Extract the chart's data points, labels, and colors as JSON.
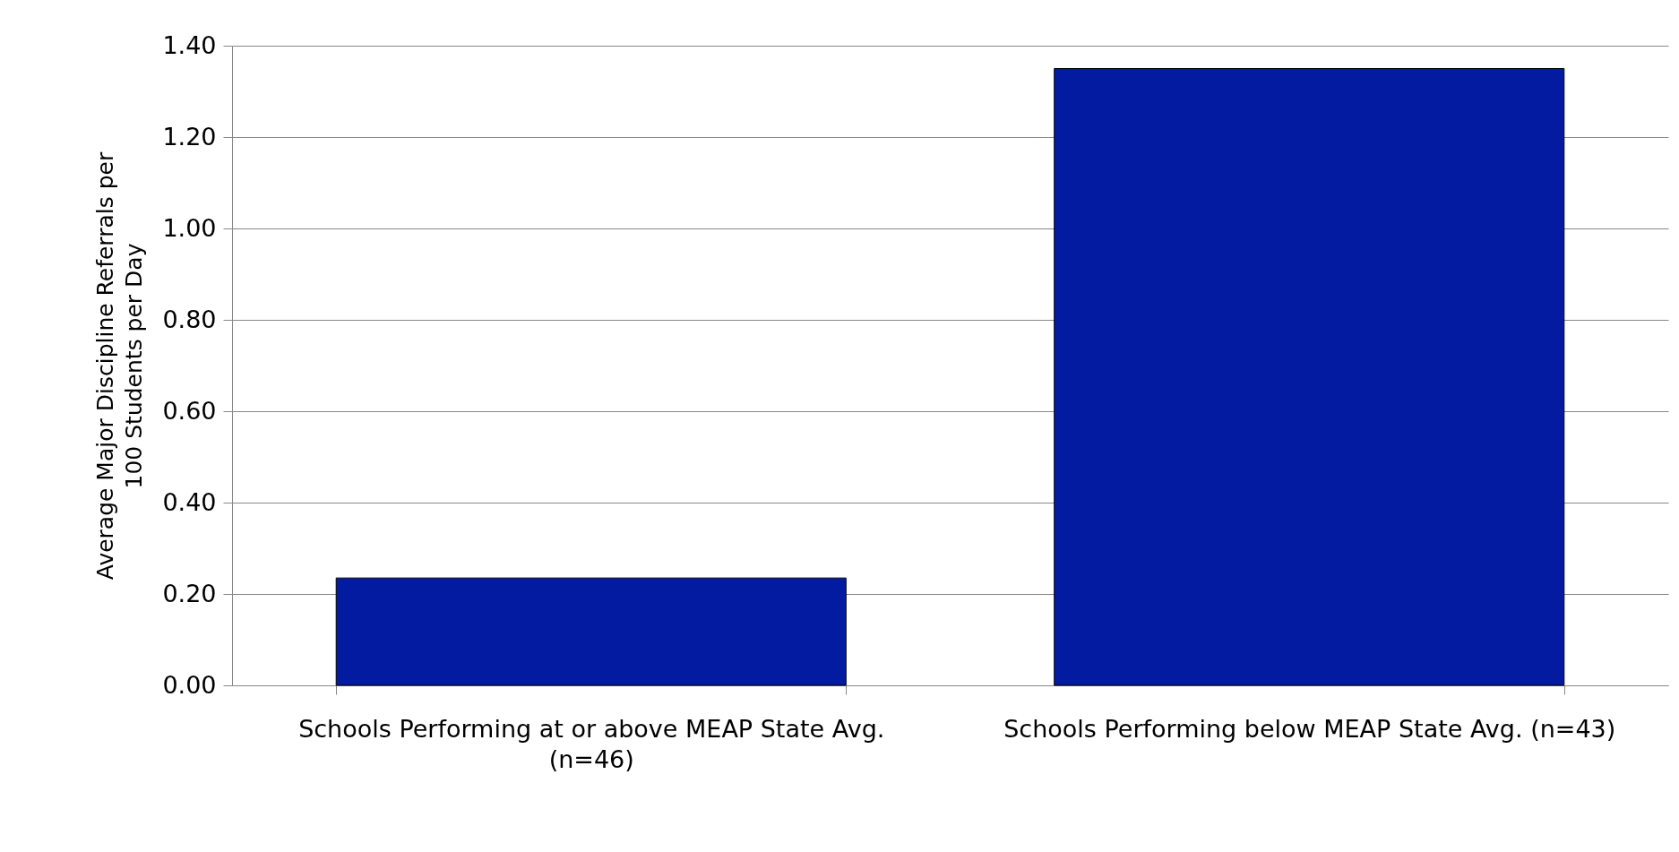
{
  "chart_data": {
    "type": "bar",
    "ylabel": "Average Major Discipline Referrals per 100 Students per Day",
    "categories": [
      "Schools Performing at or above MEAP State Avg. (n=46)",
      "Schools Performing below MEAP State Avg. (n=43)"
    ],
    "values": [
      0.235,
      1.35
    ],
    "color": "#031ba0",
    "ylim": [
      0,
      1.4
    ],
    "yticks": [
      {
        "value": 0,
        "label": "0.00"
      },
      {
        "value": 0.2,
        "label": "0.20"
      },
      {
        "value": 0.4,
        "label": "0.40"
      },
      {
        "value": 0.6,
        "label": "0.60"
      },
      {
        "value": 0.8,
        "label": "0.80"
      },
      {
        "value": 1,
        "label": "1.00"
      },
      {
        "value": 1.2,
        "label": "1.20"
      },
      {
        "value": 1.4,
        "label": "1.40"
      }
    ],
    "grid": "y",
    "legend": false
  }
}
